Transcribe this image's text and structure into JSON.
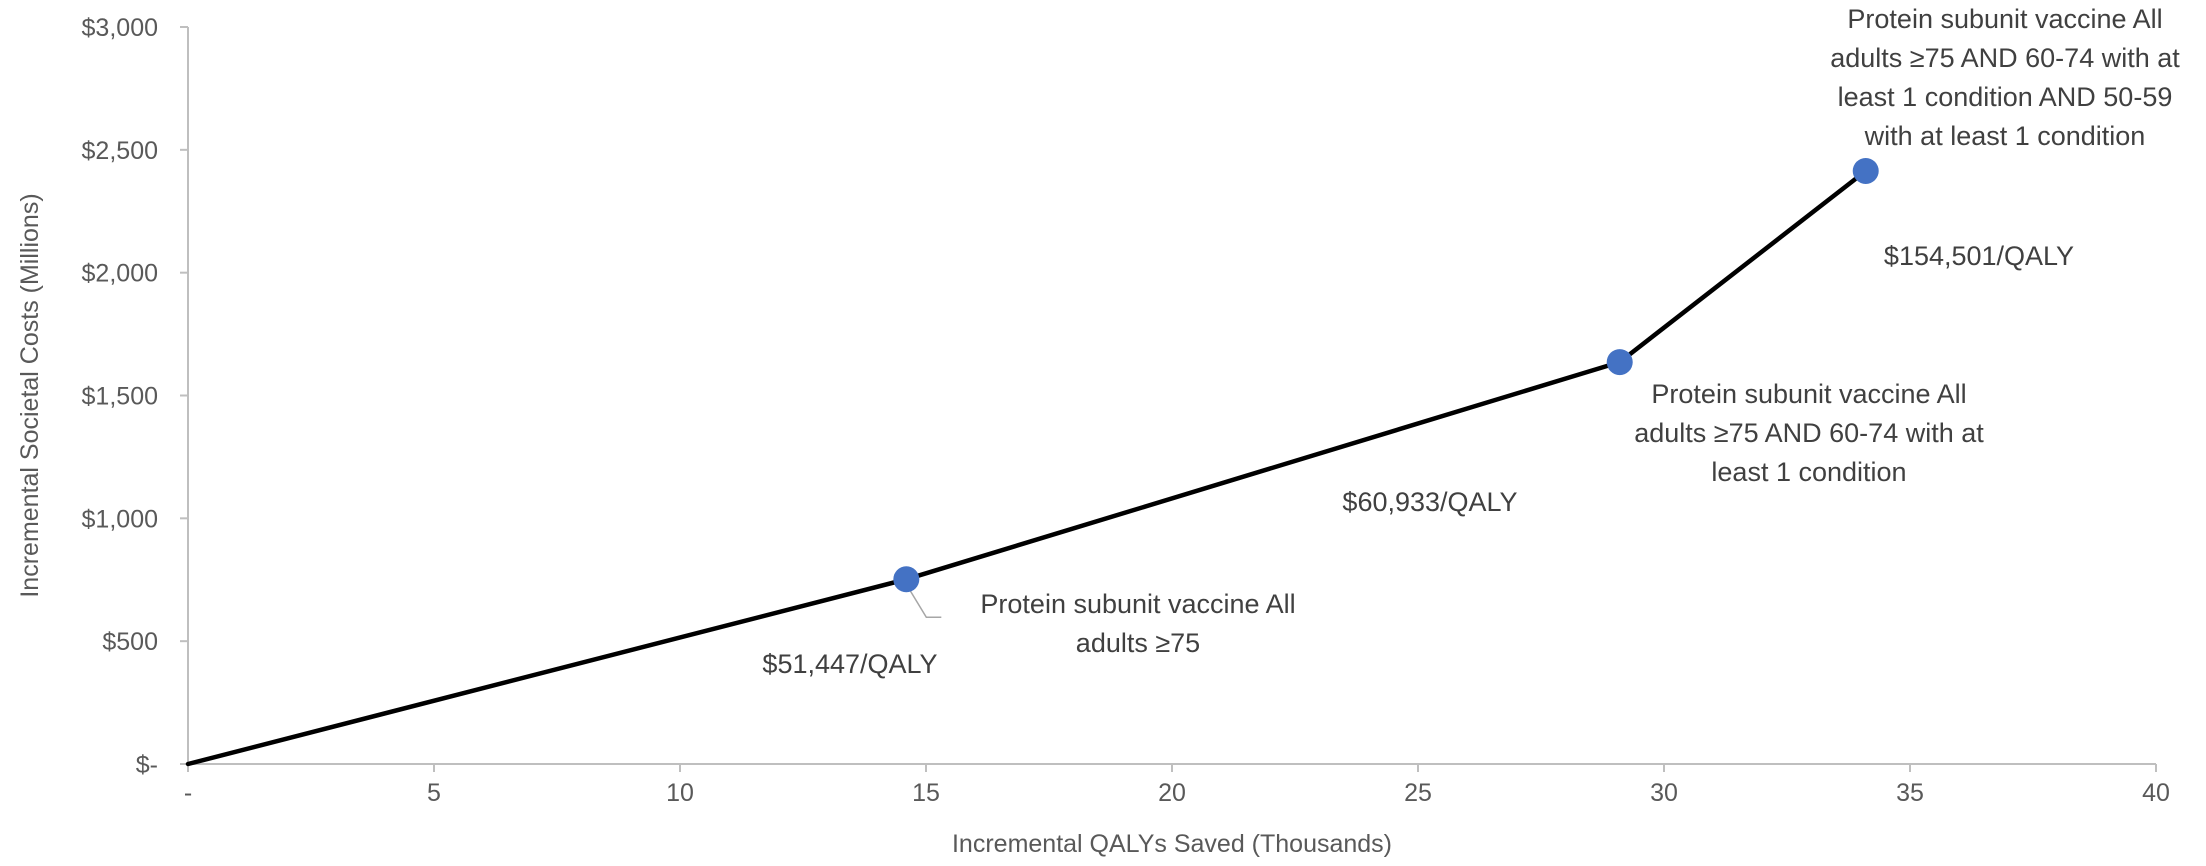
{
  "chart_data": {
    "type": "line",
    "title": "",
    "xlabel": "Incremental QALYs Saved (Thousands)",
    "ylabel": "Incremental Societal Costs (Millions)",
    "xlim": [
      0,
      40
    ],
    "ylim": [
      0,
      3000
    ],
    "x_ticks": [
      {
        "value": 0,
        "label": "-"
      },
      {
        "value": 5,
        "label": "5"
      },
      {
        "value": 10,
        "label": "10"
      },
      {
        "value": 15,
        "label": "15"
      },
      {
        "value": 20,
        "label": "20"
      },
      {
        "value": 25,
        "label": "25"
      },
      {
        "value": 30,
        "label": "30"
      },
      {
        "value": 35,
        "label": "35"
      },
      {
        "value": 40,
        "label": "40"
      }
    ],
    "y_ticks": [
      {
        "value": 0,
        "label": "$-"
      },
      {
        "value": 500,
        "label": "$500"
      },
      {
        "value": 1000,
        "label": "$1,000"
      },
      {
        "value": 1500,
        "label": "$1,500"
      },
      {
        "value": 2000,
        "label": "$2,000"
      },
      {
        "value": 2500,
        "label": "$2,500"
      },
      {
        "value": 3000,
        "label": "$3,000"
      }
    ],
    "grid": false,
    "series": [
      {
        "color": "#000000",
        "points": [
          {
            "x": 0,
            "y": 0
          },
          {
            "x": 14.6,
            "y": 752
          },
          {
            "x": 29.1,
            "y": 1636
          },
          {
            "x": 34.1,
            "y": 2414
          }
        ]
      }
    ],
    "markers": {
      "color": "#4472C4",
      "points": [
        {
          "x": 14.6,
          "y": 752
        },
        {
          "x": 29.1,
          "y": 1636
        },
        {
          "x": 34.1,
          "y": 2414
        }
      ]
    },
    "point_labels": [
      {
        "lines": [
          "Protein subunit vaccine All",
          "adults ≥75"
        ]
      },
      {
        "lines": [
          "Protein subunit vaccine All",
          "adults ≥75 AND 60-74 with at",
          "least 1 condition"
        ]
      },
      {
        "lines": [
          "Protein subunit vaccine All",
          "adults ≥75 AND 60-74 with at",
          "least 1 condition AND 50-59",
          "with at least 1 condition"
        ]
      }
    ],
    "segment_labels": [
      {
        "text": "$51,447/QALY"
      },
      {
        "text": "$60,933/QALY"
      },
      {
        "text": "$154,501/QALY"
      }
    ]
  }
}
